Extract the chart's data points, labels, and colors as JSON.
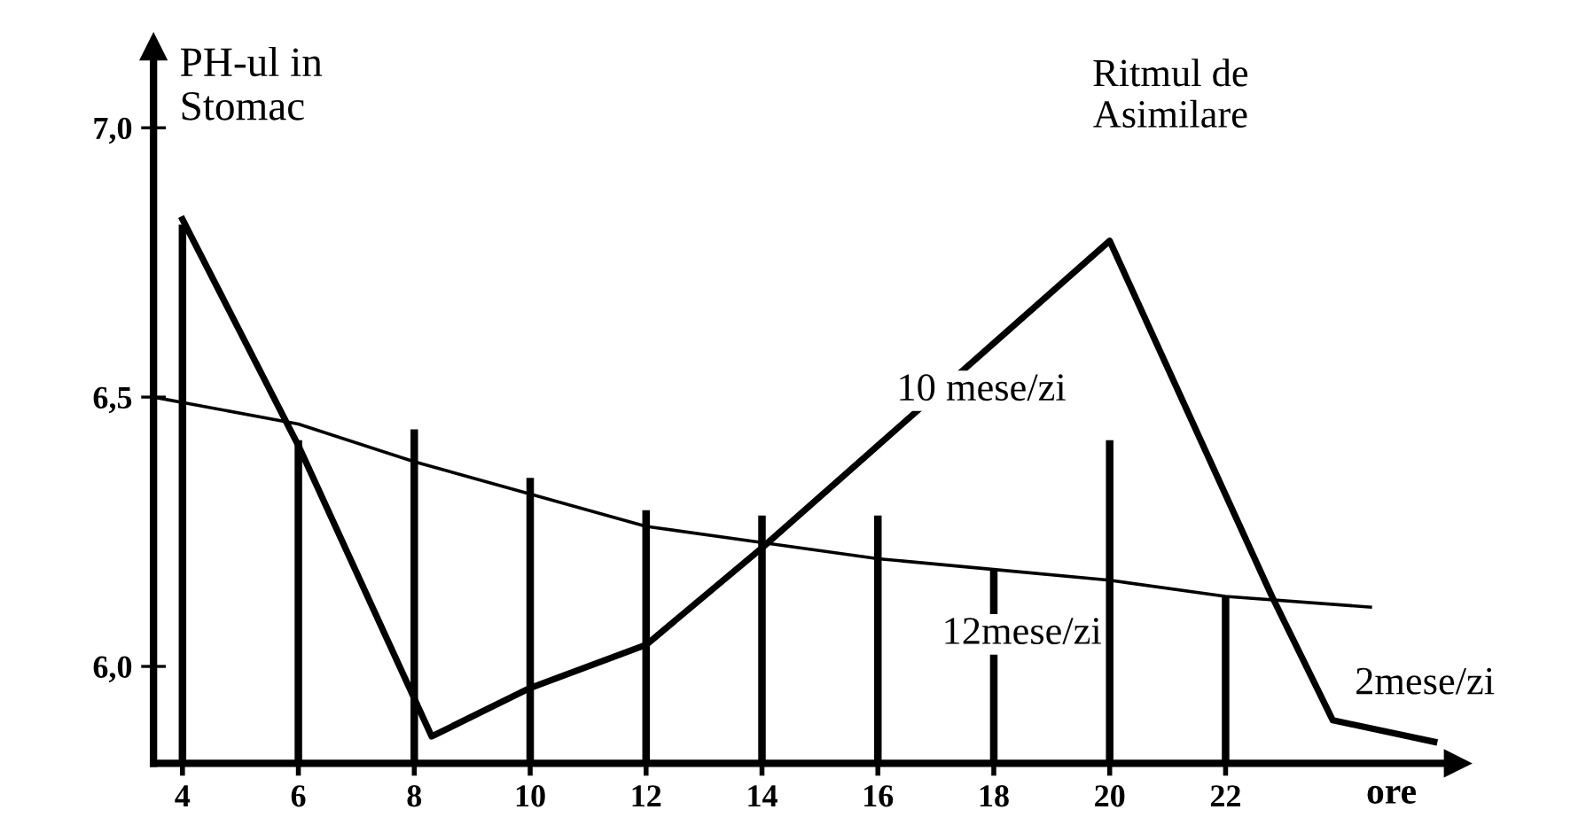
{
  "chart_data": {
    "type": "line",
    "ylabel": "PH-ul in\nStomac",
    "xlabel": "ore",
    "x": [
      4,
      6,
      8,
      10,
      12,
      14,
      16,
      18,
      20,
      22
    ],
    "xlim": [
      3.5,
      26
    ],
    "ylim": [
      5.82,
      7.15
    ],
    "xticks": [
      4,
      6,
      8,
      10,
      12,
      14,
      16,
      18,
      20,
      22
    ],
    "yticks": [
      {
        "value": 6.0,
        "label": "6,0"
      },
      {
        "value": 6.5,
        "label": "6,5"
      },
      {
        "value": 7.0,
        "label": "7,0"
      }
    ],
    "series": [
      {
        "type": "bar",
        "color": "#000000",
        "values": [
          6.82,
          6.42,
          6.44,
          6.35,
          6.29,
          6.28,
          6.28,
          6.18,
          6.42,
          6.13
        ]
      },
      {
        "color": "#000000",
        "x": [
          4,
          6,
          8.3,
          10,
          12,
          14,
          16,
          18,
          20,
          22.8,
          23.85,
          25.6
        ],
        "values": [
          6.83,
          6.41,
          5.87,
          5.96,
          6.04,
          6.22,
          6.41,
          6.6,
          6.79,
          6.13,
          5.9,
          5.86
        ]
      },
      {
        "color": "#000000",
        "x": [
          3.5,
          6,
          8,
          10,
          12,
          14,
          16,
          18,
          20,
          22,
          24.5
        ],
        "values": [
          6.5,
          6.45,
          6.38,
          6.32,
          6.26,
          6.23,
          6.2,
          6.18,
          6.16,
          6.13,
          6.11
        ]
      }
    ],
    "annotations": [
      "Ritmul de\nAsimilare",
      "10 mese/zi",
      "12mese/zi",
      "2mese/zi"
    ],
    "legend": false,
    "grid": false
  }
}
